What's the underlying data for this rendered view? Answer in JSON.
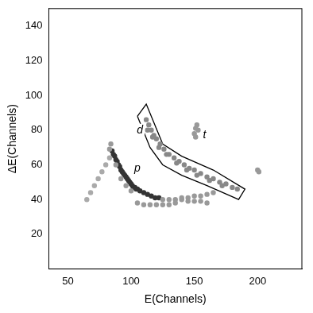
{
  "chart_data": {
    "type": "scatter",
    "x_label": "E(Channels)",
    "y_label": "ΔE(Channels)",
    "xlim": [
      35,
      235
    ],
    "xticks": [
      50,
      100,
      150,
      200
    ],
    "ylim": [
      0,
      150
    ],
    "yticks": [
      20,
      40,
      60,
      80,
      100,
      120,
      140
    ],
    "grid": false,
    "series": [
      {
        "color": "#aaaaaa",
        "marker": "circle",
        "values": [
          [
            65,
            40
          ],
          [
            68,
            44
          ],
          [
            71,
            48
          ],
          [
            74,
            52
          ],
          [
            77,
            56
          ],
          [
            80,
            60
          ],
          [
            83,
            64
          ]
        ]
      },
      {
        "color": "#999999",
        "marker": "circle",
        "values": [
          [
            84,
            72
          ],
          [
            83,
            69
          ],
          [
            88,
            60
          ],
          [
            92,
            52
          ],
          [
            96,
            48
          ],
          [
            100,
            45
          ],
          [
            125,
            40
          ],
          [
            130,
            40
          ],
          [
            135,
            40
          ],
          [
            140,
            40
          ],
          [
            145,
            39
          ],
          [
            150,
            39
          ],
          [
            155,
            39
          ],
          [
            160,
            38
          ],
          [
            105,
            38
          ],
          [
            110,
            37
          ],
          [
            115,
            37
          ],
          [
            120,
            37
          ],
          [
            125,
            37
          ],
          [
            130,
            37
          ],
          [
            135,
            38
          ],
          [
            140,
            41
          ],
          [
            145,
            41
          ],
          [
            150,
            42
          ],
          [
            155,
            42
          ],
          [
            160,
            43
          ],
          [
            165,
            44
          ]
        ]
      },
      {
        "color": "#333333",
        "marker": "circle",
        "values": [
          [
            85,
            68
          ],
          [
            87,
            65
          ],
          [
            89,
            62
          ],
          [
            91,
            59
          ],
          [
            93,
            56
          ],
          [
            95,
            54
          ],
          [
            97,
            52
          ],
          [
            99,
            50
          ],
          [
            101,
            48
          ],
          [
            103,
            47
          ],
          [
            105,
            46
          ],
          [
            107,
            45
          ],
          [
            110,
            44
          ],
          [
            113,
            43
          ],
          [
            116,
            42
          ],
          [
            119,
            41
          ],
          [
            122,
            41
          ],
          [
            86,
            66
          ],
          [
            88,
            63
          ],
          [
            90,
            60
          ],
          [
            92,
            57
          ],
          [
            94,
            55
          ],
          [
            96,
            53
          ],
          [
            98,
            51
          ],
          [
            100,
            49
          ],
          [
            102,
            47
          ],
          [
            104,
            46
          ]
        ]
      },
      {
        "color": "#888888",
        "marker": "circle",
        "values": [
          [
            112,
            86
          ],
          [
            114,
            83
          ],
          [
            116,
            80
          ],
          [
            118,
            77
          ],
          [
            120,
            75
          ],
          [
            123,
            72
          ],
          [
            126,
            69
          ],
          [
            130,
            66
          ],
          [
            134,
            64
          ],
          [
            138,
            62
          ],
          [
            142,
            60
          ],
          [
            146,
            58
          ],
          [
            150,
            57
          ],
          [
            155,
            55
          ],
          [
            160,
            53
          ],
          [
            165,
            52
          ],
          [
            170,
            50
          ],
          [
            175,
            49
          ],
          [
            180,
            47
          ],
          [
            184,
            46
          ],
          [
            113,
            80
          ],
          [
            117,
            76
          ],
          [
            122,
            70
          ],
          [
            128,
            66
          ],
          [
            136,
            61
          ],
          [
            144,
            57
          ],
          [
            152,
            54
          ],
          [
            162,
            51
          ],
          [
            172,
            48
          ]
        ]
      },
      {
        "color": "#999999",
        "marker": "circle",
        "values": [
          [
            150,
            78
          ],
          [
            151,
            81
          ],
          [
            152,
            83
          ],
          [
            153,
            80
          ],
          [
            151,
            76
          ],
          [
            200,
            57
          ],
          [
            201,
            56
          ]
        ]
      },
      {
        "color": "#000000",
        "type": "line",
        "line_style": "solid",
        "values": [
          [
            105,
            88
          ],
          [
            112,
            95
          ],
          [
            125,
            72
          ],
          [
            140,
            65
          ],
          [
            165,
            57
          ],
          [
            190,
            46
          ],
          [
            185,
            40
          ],
          [
            160,
            48
          ],
          [
            140,
            54
          ],
          [
            125,
            60
          ],
          [
            115,
            70
          ],
          [
            105,
            88
          ]
        ]
      }
    ],
    "annotations": [
      {
        "text": "d",
        "x": 107,
        "y": 80
      },
      {
        "text": "t",
        "x": 158,
        "y": 77
      },
      {
        "text": "p",
        "x": 105,
        "y": 58
      }
    ]
  }
}
